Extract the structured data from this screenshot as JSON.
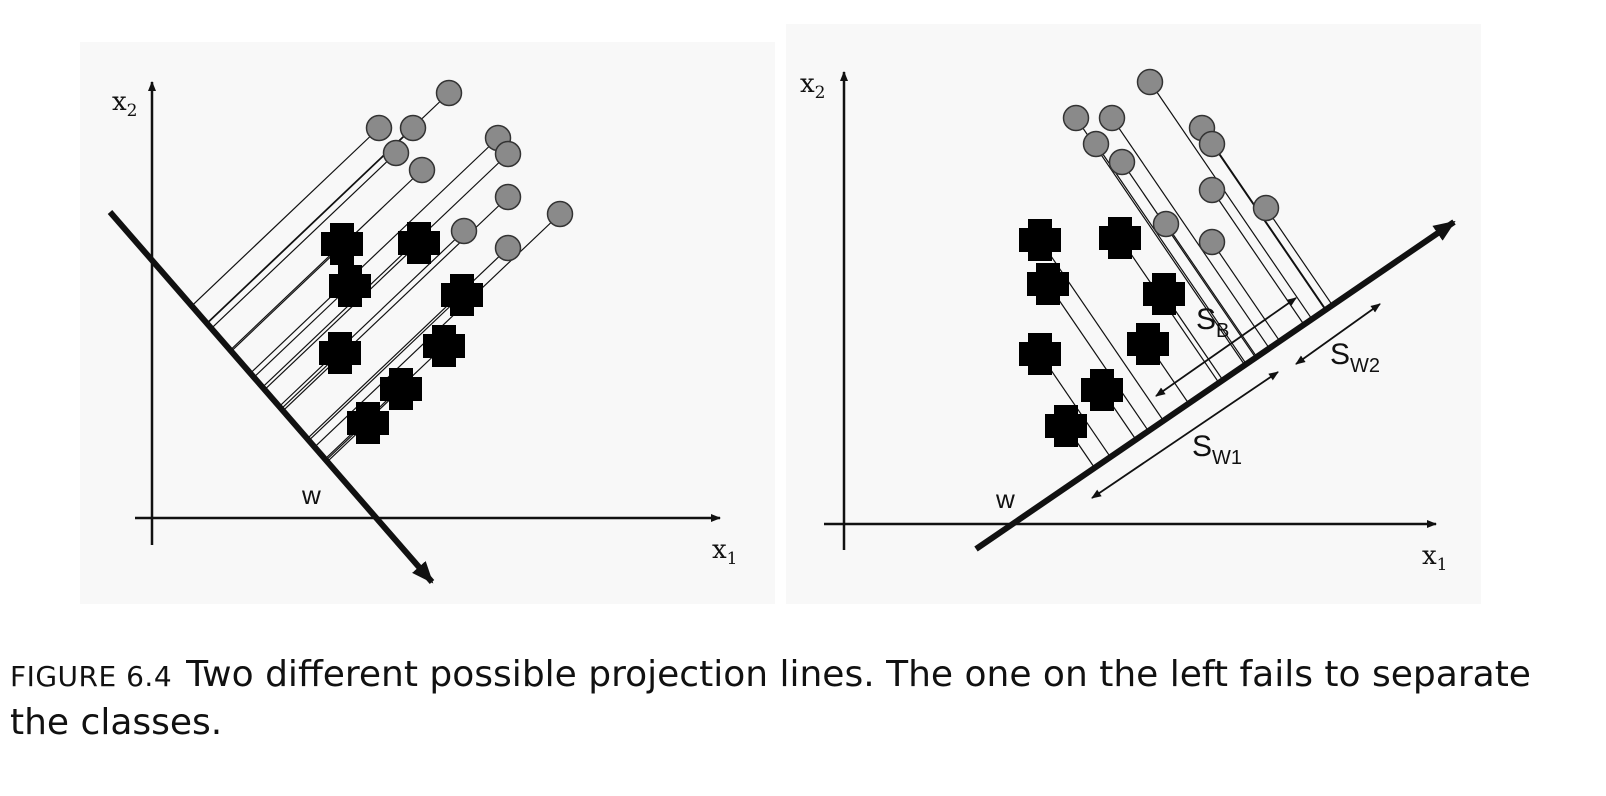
{
  "figure": {
    "label": "FIGURE 6.4",
    "caption": "Two different possible projection lines. The one on the left fails to separate the classes."
  },
  "left_panel": {
    "x_axis_label": "x",
    "x_axis_sub": "1",
    "y_axis_label": "x",
    "y_axis_sub": "2",
    "projection_label": "w"
  },
  "right_panel": {
    "x_axis_label": "x",
    "x_axis_sub": "1",
    "y_axis_label": "x",
    "y_axis_sub": "2",
    "projection_label": "w",
    "between_label": "S",
    "between_sub": "B",
    "within1_label": "S",
    "within1_sub": "W1",
    "within2_label": "S",
    "within2_sub": "W2"
  },
  "colors": {
    "circle_fill": "#8a8a8a",
    "cross_fill": "#000000",
    "line": "#111111",
    "panel_background": "#f8f8f8"
  },
  "legend_semantics": {
    "class_a_icon": "grey-circle-icon",
    "class_b_icon": "black-cross-icon"
  }
}
